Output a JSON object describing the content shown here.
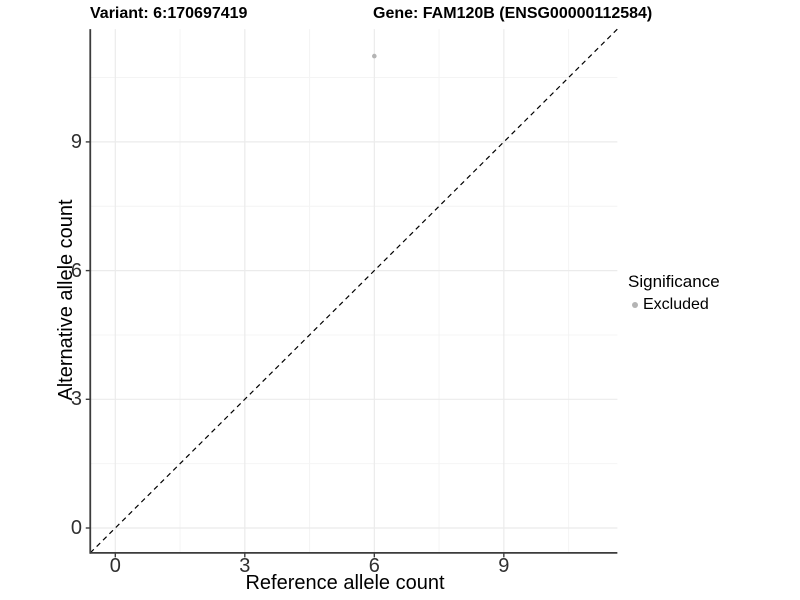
{
  "titles": {
    "variant": "Variant: 6:170697419",
    "gene": "Gene: FAM120B (ENSG00000112584)"
  },
  "chart_data": {
    "type": "scatter",
    "xlabel": "Reference allele count",
    "ylabel": "Alternative allele count",
    "x_ticks": [
      0,
      3,
      6,
      9
    ],
    "y_ticks": [
      0,
      3,
      6,
      9
    ],
    "x_minor_ticks": [
      1.5,
      4.5,
      7.5,
      10.5
    ],
    "y_minor_ticks": [
      1.5,
      4.5,
      7.5,
      10.5
    ],
    "xlim": [
      -0.58,
      11.63
    ],
    "ylim": [
      -0.58,
      11.63
    ],
    "grid": "major and minor, light gray on white",
    "points": [
      {
        "x": 6,
        "y": 11,
        "series": "Excluded"
      }
    ],
    "point_color": "#b4b4b4",
    "identity_line": {
      "style": "dashed",
      "equation": "y = x"
    },
    "legend": {
      "position": "right",
      "title": "Significance",
      "entries": [
        {
          "label": "Excluded",
          "color": "#b4b4b4"
        }
      ]
    }
  },
  "colors": {
    "background": "#ffffff",
    "grid_major": "#ebebeb",
    "grid_minor": "#f4f4f4",
    "axis_line": "#3c3c3c",
    "tick_label": "#303030",
    "identity_line": "#000000"
  }
}
